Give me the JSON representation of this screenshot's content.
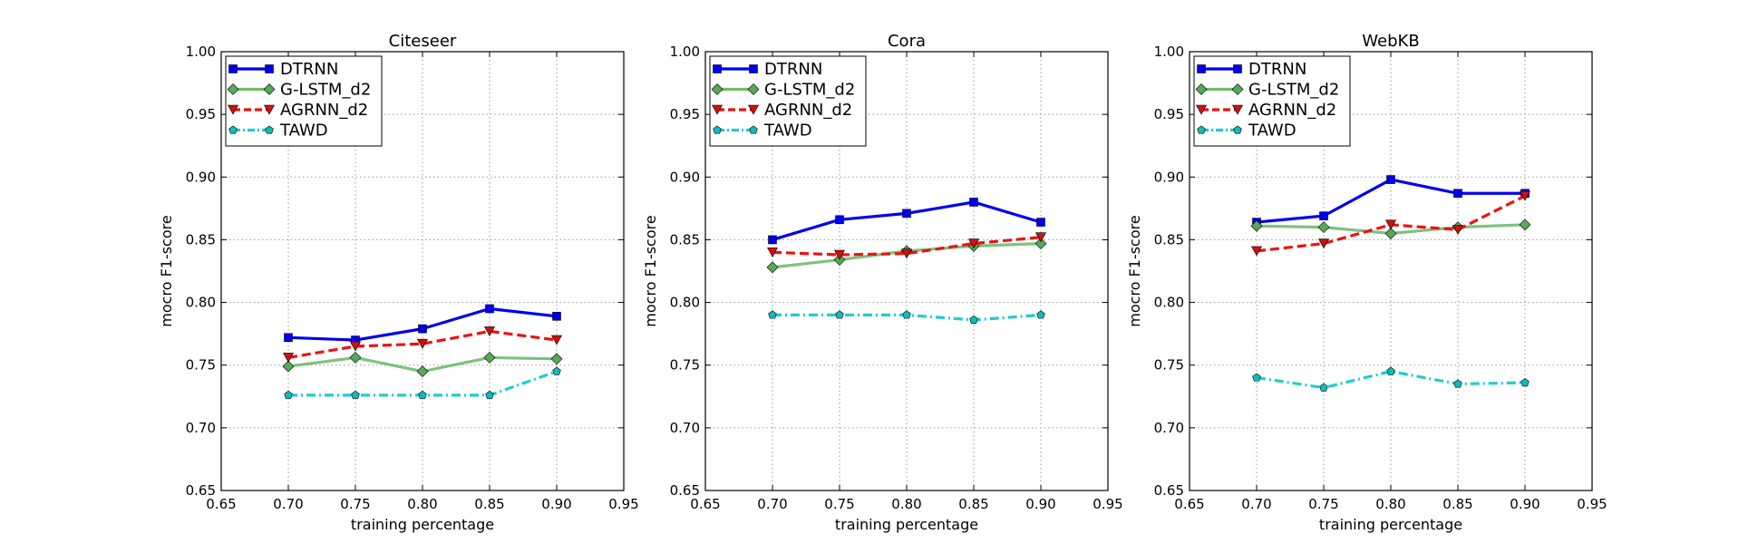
{
  "chart_data": [
    {
      "type": "line",
      "title": "Citeseer",
      "xlabel": "training percentage",
      "ylabel": "mocro F1-score",
      "xlim": [
        0.65,
        0.95
      ],
      "ylim": [
        0.65,
        1.0
      ],
      "xticks": [
        "0.65",
        "0.70",
        "0.75",
        "0.80",
        "0.85",
        "0.90",
        "0.95"
      ],
      "yticks": [
        "0.65",
        "0.70",
        "0.75",
        "0.80",
        "0.85",
        "0.90",
        "0.95",
        "1.00"
      ],
      "grid": true,
      "legend": "top-left",
      "x": [
        0.7,
        0.75,
        0.8,
        0.85,
        0.9
      ],
      "series": [
        {
          "name": "DTRNN",
          "values": [
            0.772,
            0.77,
            0.779,
            0.795,
            0.789
          ]
        },
        {
          "name": "G-LSTM_d2",
          "values": [
            0.749,
            0.756,
            0.745,
            0.756,
            0.755
          ]
        },
        {
          "name": "AGRNN_d2",
          "values": [
            0.756,
            0.765,
            0.767,
            0.777,
            0.77
          ]
        },
        {
          "name": "TAWD",
          "values": [
            0.726,
            0.726,
            0.726,
            0.726,
            0.745
          ]
        }
      ]
    },
    {
      "type": "line",
      "title": "Cora",
      "xlabel": "training percentage",
      "ylabel": "mocro F1-score",
      "xlim": [
        0.65,
        0.95
      ],
      "ylim": [
        0.65,
        1.0
      ],
      "xticks": [
        "0.65",
        "0.70",
        "0.75",
        "0.80",
        "0.85",
        "0.90",
        "0.95"
      ],
      "yticks": [
        "0.65",
        "0.70",
        "0.75",
        "0.80",
        "0.85",
        "0.90",
        "0.95",
        "1.00"
      ],
      "grid": true,
      "legend": "top-left",
      "x": [
        0.7,
        0.75,
        0.8,
        0.85,
        0.9
      ],
      "series": [
        {
          "name": "DTRNN",
          "values": [
            0.85,
            0.866,
            0.871,
            0.88,
            0.864
          ]
        },
        {
          "name": "G-LSTM_d2",
          "values": [
            0.828,
            0.834,
            0.841,
            0.845,
            0.847
          ]
        },
        {
          "name": "AGRNN_d2",
          "values": [
            0.84,
            0.838,
            0.839,
            0.847,
            0.852
          ]
        },
        {
          "name": "TAWD",
          "values": [
            0.79,
            0.79,
            0.79,
            0.786,
            0.79
          ]
        }
      ]
    },
    {
      "type": "line",
      "title": "WebKB",
      "xlabel": "training percentage",
      "ylabel": "mocro F1-score",
      "xlim": [
        0.65,
        0.95
      ],
      "ylim": [
        0.65,
        1.0
      ],
      "xticks": [
        "0.65",
        "0.70",
        "0.75",
        "0.80",
        "0.85",
        "0.90",
        "0.95"
      ],
      "yticks": [
        "0.65",
        "0.70",
        "0.75",
        "0.80",
        "0.85",
        "0.90",
        "0.95",
        "1.00"
      ],
      "grid": true,
      "legend": "top-left",
      "x": [
        0.7,
        0.75,
        0.8,
        0.85,
        0.9
      ],
      "series": [
        {
          "name": "DTRNN",
          "values": [
            0.864,
            0.869,
            0.898,
            0.887,
            0.887
          ]
        },
        {
          "name": "G-LSTM_d2",
          "values": [
            0.861,
            0.86,
            0.855,
            0.86,
            0.862
          ]
        },
        {
          "name": "AGRNN_d2",
          "values": [
            0.841,
            0.847,
            0.862,
            0.858,
            0.885
          ]
        },
        {
          "name": "TAWD",
          "values": [
            0.74,
            0.732,
            0.745,
            0.735,
            0.736
          ]
        }
      ]
    }
  ],
  "styles": {
    "DTRNN": {
      "color": "#0000ee",
      "marker": "square-icon",
      "dash": "solid"
    },
    "G-LSTM_d2": {
      "color": "#6fbb6f",
      "marker_fill": "#55aa55",
      "marker": "diamond-icon",
      "dash": "solid"
    },
    "AGRNN_d2": {
      "color": "#ee1111",
      "marker_fill": "#cc1111",
      "marker": "triangle-down-icon",
      "dash": "dashed"
    },
    "TAWD": {
      "color": "#22cccc",
      "marker_fill": "#11bbbb",
      "marker": "pentagon-icon",
      "dash": "dashdot"
    },
    "grid_color": "#999999",
    "axis_color": "#000000"
  }
}
